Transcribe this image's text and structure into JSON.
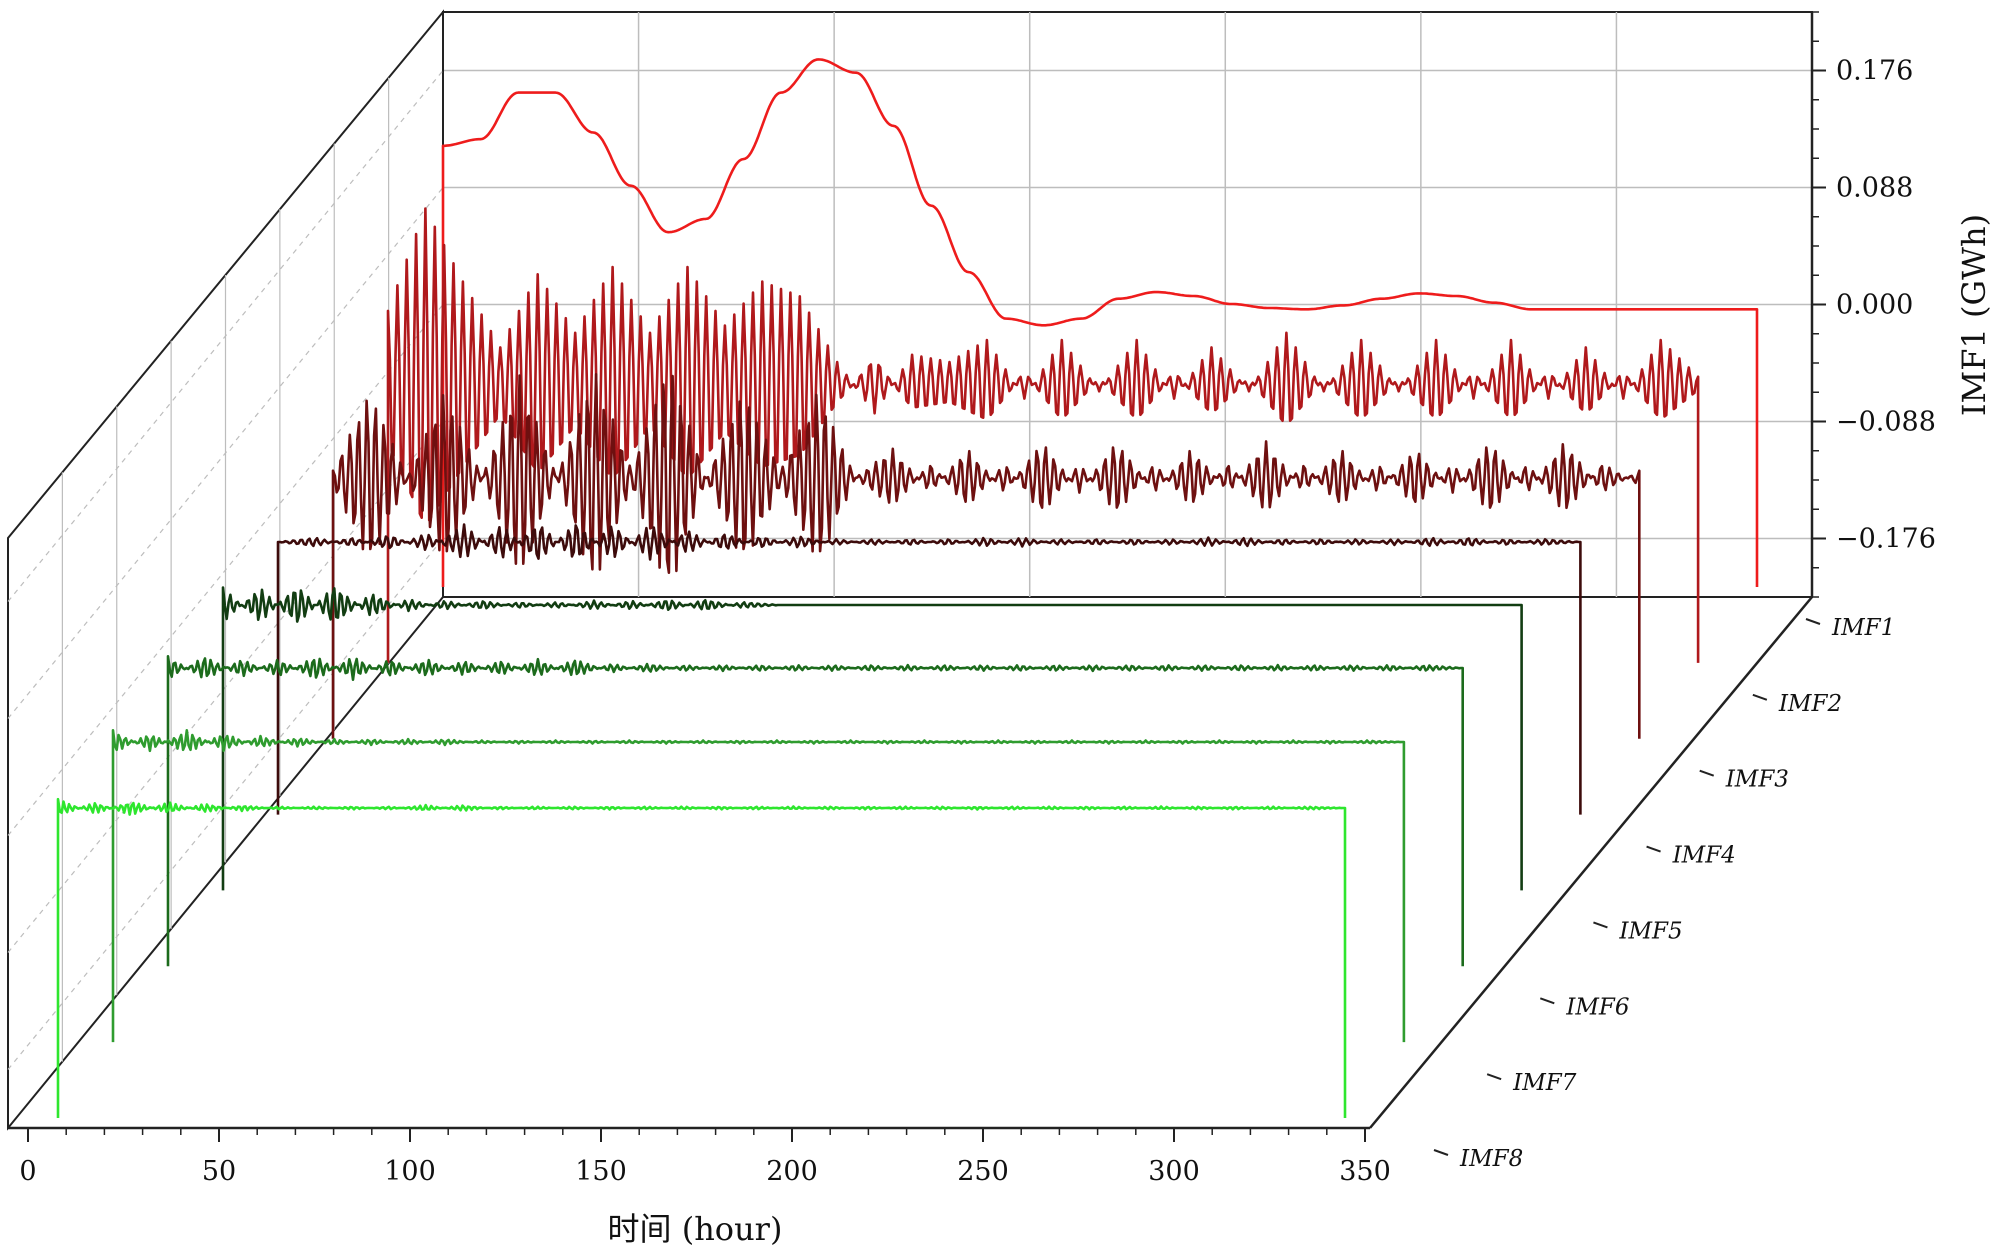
{
  "chart_data": {
    "type": "line",
    "subtype": "3d-waterfall",
    "title": "",
    "xlabel": "时间 (hour)",
    "ylabel": "IMF1 (GWh)",
    "xlim": [
      0,
      350
    ],
    "x_ticks": [
      "0",
      "50",
      "100",
      "150",
      "200",
      "250",
      "300",
      "350"
    ],
    "y_ticks": [
      "-0.176",
      "-0.088",
      "0.000",
      "0.088",
      "0.176"
    ],
    "y_tick_values": [
      -0.176,
      -0.088,
      0.0,
      0.088,
      0.176
    ],
    "grid": true,
    "x_range_per_series": [
      0,
      350
    ],
    "series": [
      {
        "name": "IMF1",
        "color": "#ee1c1c",
        "x": [
          0,
          10,
          20,
          30,
          40,
          50,
          60,
          70,
          80,
          90,
          100,
          110,
          120,
          130,
          140,
          150,
          160,
          170,
          180,
          190,
          200,
          210,
          220,
          230,
          240,
          250,
          260,
          270,
          280,
          290,
          300,
          310,
          320,
          330,
          340,
          350
        ],
        "values": [
          0.125,
          0.13,
          0.165,
          0.165,
          0.135,
          0.095,
          0.06,
          0.07,
          0.115,
          0.165,
          0.19,
          0.18,
          0.14,
          0.08,
          0.03,
          -0.005,
          -0.01,
          -0.005,
          0.01,
          0.015,
          0.012,
          0.006,
          0.003,
          0.002,
          0.005,
          0.01,
          0.014,
          0.012,
          0.007,
          0.002,
          0.002,
          0.002,
          0.002,
          0.002,
          0.002,
          0.002
        ]
      },
      {
        "name": "IMF2",
        "color": "#b0191c",
        "x": [
          0,
          10,
          20,
          30,
          40,
          50,
          60,
          70,
          80,
          90,
          100,
          110,
          120,
          130,
          140,
          150,
          160,
          170,
          180,
          190,
          200,
          210,
          220,
          230,
          240,
          250,
          260,
          270,
          280,
          290,
          300,
          310,
          320,
          330,
          340,
          350
        ],
        "values": [
          0.05,
          0.12,
          0.07,
          0.025,
          0.075,
          0.035,
          0.08,
          0.035,
          0.08,
          0.04,
          0.07,
          0.06,
          0.015,
          -0.02,
          0.02,
          0.015,
          0.03,
          -0.01,
          0.03,
          -0.005,
          0.03,
          -0.01,
          0.025,
          -0.005,
          0.035,
          -0.005,
          0.03,
          -0.005,
          0.03,
          -0.01,
          0.03,
          -0.01,
          0.025,
          -0.01,
          0.03,
          0.005
        ]
      },
      {
        "name": "IMF3",
        "color": "#6e1010",
        "x": [
          0,
          10,
          20,
          30,
          40,
          50,
          60,
          70,
          80,
          90,
          100,
          110,
          120,
          130,
          140,
          150,
          160,
          170,
          180,
          190,
          200,
          210,
          220,
          230,
          240,
          250,
          260,
          270,
          280,
          290,
          300,
          310,
          320,
          330,
          340,
          350
        ],
        "values": [
          0.005,
          0.06,
          0.0,
          0.06,
          0.0,
          0.07,
          0.0,
          0.075,
          0.005,
          0.08,
          0.0,
          0.06,
          0.005,
          0.06,
          0.0,
          0.02,
          -0.01,
          0.02,
          -0.01,
          0.025,
          -0.01,
          0.025,
          -0.01,
          0.02,
          -0.01,
          0.025,
          -0.01,
          0.02,
          -0.01,
          0.02,
          -0.01,
          0.025,
          -0.01,
          0.025,
          -0.01,
          0.005
        ]
      },
      {
        "name": "IMF4",
        "color": "#3d0b0b",
        "x": [
          0,
          10,
          20,
          30,
          40,
          50,
          60,
          70,
          80,
          90,
          100,
          110,
          120,
          130,
          140,
          150,
          160,
          170,
          180,
          190,
          200,
          210,
          220,
          230,
          240,
          250,
          260,
          270,
          280,
          290,
          300,
          310,
          320,
          330,
          340,
          350
        ],
        "values": [
          0.0,
          0.003,
          -0.003,
          0.005,
          -0.006,
          0.012,
          -0.012,
          0.014,
          -0.014,
          0.012,
          -0.012,
          0.008,
          -0.006,
          0.004,
          -0.004,
          0.002,
          -0.002,
          0.002,
          -0.002,
          0.003,
          -0.003,
          0.002,
          -0.002,
          0.002,
          -0.002,
          0.003,
          -0.003,
          0.002,
          -0.002,
          0.002,
          -0.002,
          0.003,
          -0.003,
          0.002,
          -0.002,
          0.0
        ]
      },
      {
        "name": "IMF5",
        "color": "#123d12",
        "x": [
          0,
          10,
          20,
          30,
          40,
          50,
          60,
          70,
          80,
          90,
          100,
          110,
          120,
          130,
          140,
          150,
          160,
          170,
          180,
          190,
          200,
          210,
          220,
          230,
          240,
          250,
          260,
          270,
          280,
          290,
          300,
          310,
          320,
          330,
          340,
          350
        ],
        "values": [
          0.012,
          -0.012,
          0.014,
          -0.014,
          0.008,
          -0.004,
          0.003,
          -0.003,
          0.002,
          -0.002,
          0.003,
          -0.003,
          0.004,
          -0.004,
          0.002,
          0.0,
          0.0,
          0.0,
          0.0,
          0.0,
          0.0,
          0.0,
          0.0,
          0.0,
          0.0,
          0.0,
          0.0,
          0.0,
          0.0,
          0.0,
          0.0,
          0.0,
          0.0,
          0.0,
          0.0,
          0.0
        ]
      },
      {
        "name": "IMF6",
        "color": "#1c6b1c",
        "x": [
          0,
          10,
          20,
          30,
          40,
          50,
          60,
          70,
          80,
          90,
          100,
          110,
          120,
          130,
          140,
          150,
          160,
          170,
          180,
          190,
          200,
          210,
          220,
          230,
          240,
          250,
          260,
          270,
          280,
          290,
          300,
          310,
          320,
          330,
          340,
          350
        ],
        "values": [
          0.008,
          -0.008,
          0.006,
          -0.006,
          0.008,
          -0.008,
          0.006,
          -0.006,
          0.005,
          -0.005,
          0.006,
          -0.006,
          0.003,
          -0.003,
          0.002,
          -0.002,
          0.002,
          -0.002,
          0.002,
          -0.002,
          0.002,
          -0.002,
          0.002,
          -0.002,
          0.002,
          -0.002,
          0.002,
          -0.002,
          0.002,
          -0.002,
          0.002,
          -0.002,
          0.002,
          -0.002,
          0.002,
          0.0
        ]
      },
      {
        "name": "IMF7",
        "color": "#2f9c2f",
        "x": [
          0,
          10,
          20,
          30,
          40,
          50,
          60,
          70,
          80,
          90,
          100,
          110,
          120,
          130,
          140,
          150,
          160,
          170,
          180,
          190,
          200,
          210,
          220,
          230,
          240,
          250,
          260,
          270,
          280,
          290,
          300,
          310,
          320,
          330,
          340,
          350
        ],
        "values": [
          0.008,
          -0.006,
          0.008,
          -0.006,
          0.004,
          -0.003,
          0.002,
          -0.002,
          0.002,
          -0.002,
          0.001,
          -0.001,
          0.001,
          -0.001,
          0.001,
          -0.001,
          0.001,
          -0.001,
          0.001,
          -0.001,
          0.001,
          -0.001,
          0.001,
          -0.001,
          0.001,
          -0.001,
          0.001,
          -0.001,
          0.001,
          -0.001,
          0.001,
          -0.001,
          0.001,
          -0.001,
          0.001,
          0.0
        ]
      },
      {
        "name": "IMF8",
        "color": "#2ee62e",
        "x": [
          0,
          10,
          20,
          30,
          40,
          50,
          60,
          70,
          80,
          90,
          100,
          110,
          120,
          130,
          140,
          150,
          160,
          170,
          180,
          190,
          200,
          210,
          220,
          230,
          240,
          250,
          260,
          270,
          280,
          290,
          300,
          310,
          320,
          330,
          340,
          350
        ],
        "values": [
          0.006,
          -0.004,
          0.005,
          -0.004,
          0.003,
          -0.002,
          0.001,
          -0.001,
          0.001,
          -0.001,
          0.002,
          -0.002,
          0.001,
          -0.001,
          0.001,
          -0.001,
          0.001,
          -0.001,
          0.001,
          -0.001,
          0.001,
          -0.001,
          0.001,
          -0.001,
          0.001,
          -0.001,
          0.001,
          -0.001,
          0.001,
          -0.001,
          0.001,
          -0.001,
          0.001,
          -0.001,
          0.001,
          0.0
        ]
      }
    ]
  }
}
